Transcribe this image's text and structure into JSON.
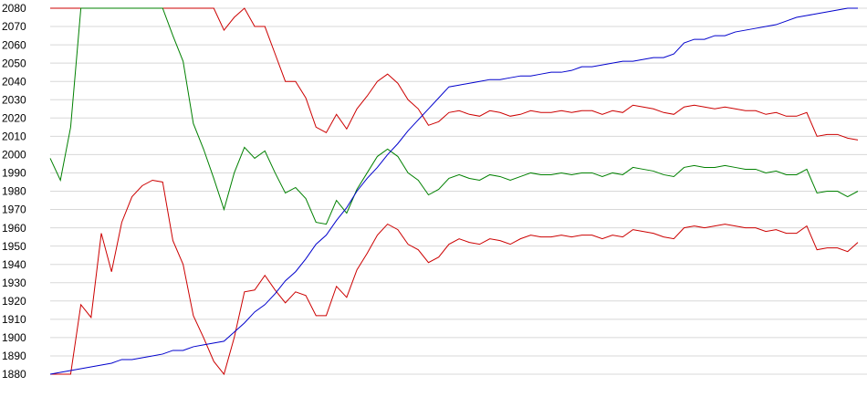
{
  "chart_data": {
    "type": "line",
    "ylim": [
      1880,
      2080
    ],
    "yticks": [
      1880,
      1890,
      1900,
      1910,
      1920,
      1930,
      1940,
      1950,
      1960,
      1970,
      1980,
      1990,
      2000,
      2010,
      2020,
      2030,
      2040,
      2050,
      2060,
      2070,
      2080
    ],
    "grid": true,
    "series": [
      {
        "color": "#cc0000",
        "values": [
          2080,
          2080,
          2080,
          2080,
          2080,
          2080,
          2080,
          2080,
          2080,
          2080,
          2080,
          2080,
          2080,
          2080,
          2080,
          2080,
          2080,
          2068,
          2075,
          2080,
          2070,
          2070,
          2055,
          2040,
          2040,
          2031,
          2015,
          2012,
          2022,
          2014,
          2025,
          2032,
          2040,
          2044,
          2039,
          2030,
          2025,
          2016,
          2018,
          2023,
          2024,
          2022,
          2021,
          2024,
          2023,
          2021,
          2022,
          2024,
          2023,
          2023,
          2024,
          2023,
          2024,
          2024,
          2022,
          2024,
          2023,
          2027,
          2026,
          2025,
          2023,
          2022,
          2026,
          2027,
          2026,
          2025,
          2026,
          2025,
          2024,
          2024,
          2022,
          2023,
          2021,
          2021,
          2023,
          2010,
          2011,
          2011,
          2009,
          2008
        ]
      },
      {
        "color": "#008000",
        "values": [
          1998,
          1986,
          2015,
          2080,
          2080,
          2080,
          2080,
          2080,
          2080,
          2080,
          2080,
          2080,
          2065,
          2051,
          2017,
          2003,
          1987,
          1970,
          1990,
          2004,
          1998,
          2002,
          1990,
          1979,
          1982,
          1976,
          1963,
          1962,
          1975,
          1968,
          1981,
          1990,
          1999,
          2003,
          1999,
          1990,
          1986,
          1978,
          1981,
          1987,
          1989,
          1987,
          1986,
          1989,
          1988,
          1986,
          1988,
          1990,
          1989,
          1989,
          1990,
          1989,
          1990,
          1990,
          1988,
          1990,
          1989,
          1993,
          1992,
          1991,
          1989,
          1988,
          1993,
          1994,
          1993,
          1993,
          1994,
          1993,
          1992,
          1992,
          1990,
          1991,
          1989,
          1989,
          1992,
          1979,
          1980,
          1980,
          1977,
          1980
        ]
      },
      {
        "color": "#cc0000",
        "values": [
          1880,
          1880,
          1880,
          1918,
          1911,
          1957,
          1936,
          1963,
          1977,
          1983,
          1986,
          1985,
          1953,
          1940,
          1912,
          1900,
          1887,
          1880,
          1900,
          1925,
          1926,
          1934,
          1926,
          1919,
          1925,
          1923,
          1912,
          1912,
          1928,
          1922,
          1937,
          1946,
          1956,
          1962,
          1959,
          1951,
          1948,
          1941,
          1944,
          1951,
          1954,
          1952,
          1951,
          1954,
          1953,
          1951,
          1954,
          1956,
          1955,
          1955,
          1956,
          1955,
          1956,
          1956,
          1954,
          1956,
          1955,
          1959,
          1958,
          1957,
          1955,
          1954,
          1960,
          1961,
          1960,
          1961,
          1962,
          1961,
          1960,
          1960,
          1958,
          1959,
          1957,
          1957,
          1961,
          1948,
          1949,
          1949,
          1947,
          1952
        ]
      },
      {
        "color": "#0000cc",
        "values": [
          1880,
          1881,
          1882,
          1883,
          1884,
          1885,
          1886,
          1888,
          1888,
          1889,
          1890,
          1891,
          1893,
          1893,
          1895,
          1896,
          1897,
          1898,
          1903,
          1908,
          1914,
          1918,
          1924,
          1931,
          1936,
          1943,
          1951,
          1956,
          1964,
          1971,
          1980,
          1987,
          1993,
          2000,
          2006,
          2013,
          2019,
          2025,
          2031,
          2037,
          2038,
          2039,
          2040,
          2041,
          2041,
          2042,
          2043,
          2043,
          2044,
          2045,
          2045,
          2046,
          2048,
          2048,
          2049,
          2050,
          2051,
          2051,
          2052,
          2053,
          2053,
          2055,
          2061,
          2063,
          2063,
          2065,
          2065,
          2067,
          2068,
          2069,
          2070,
          2071,
          2073,
          2075,
          2076,
          2077,
          2078,
          2079,
          2080,
          2080
        ]
      }
    ]
  }
}
